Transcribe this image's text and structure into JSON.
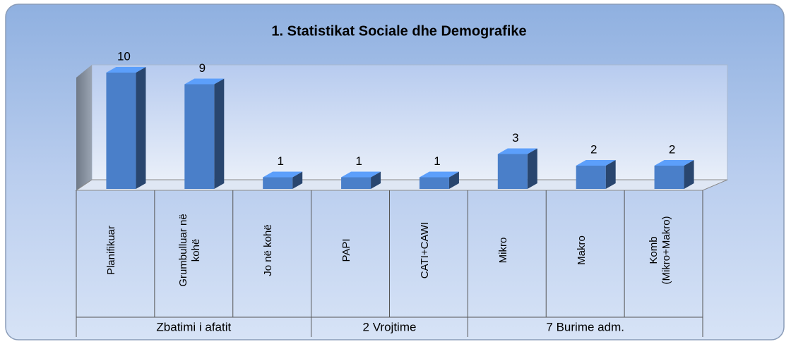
{
  "chart_data": {
    "type": "bar3d",
    "title": "1. Statistikat Sociale dhe Demografike",
    "color": "#4a7fc9",
    "groups": [
      {
        "name": "Zbatimi i afatit",
        "categories": [
          "Planifikuar",
          "Grumbulluar në kohë",
          "Jo në kohë"
        ],
        "values": [
          10,
          9,
          1
        ]
      },
      {
        "name": "2 Vrojtime",
        "categories": [
          "PAPI",
          "CATI+CAWI"
        ],
        "values": [
          1,
          1
        ]
      },
      {
        "name": "7 Burime adm.",
        "categories": [
          "Mikro",
          "Makro",
          "Komb (Mikro+Makro)"
        ],
        "values": [
          3,
          2,
          2
        ]
      }
    ]
  }
}
